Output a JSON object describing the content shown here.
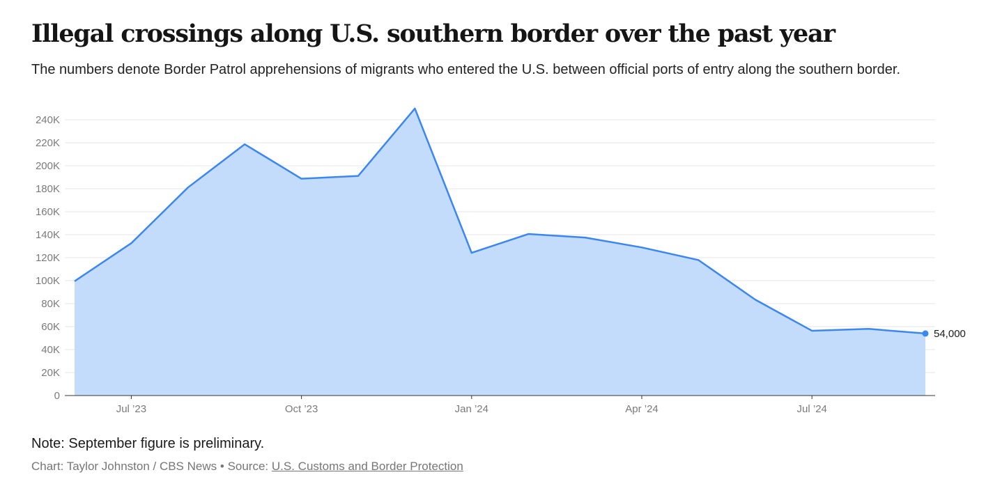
{
  "header": {
    "title": "Illegal crossings along U.S. southern border over the past year",
    "subtitle": "The numbers denote Border Patrol apprehensions of migrants who entered the U.S. between official ports of entry along the southern border."
  },
  "footer": {
    "note": "Note: September figure is preliminary.",
    "credit": "Chart: Taylor Johnston / CBS News",
    "separator": "•",
    "source_label": "Source:",
    "source_link": "U.S. Customs and Border Protection"
  },
  "colors": {
    "line": "#3b86f0",
    "area": "#c3dcfb",
    "grid": "#e4e4e4",
    "axis": "#333333"
  },
  "chart_data": {
    "type": "area",
    "title": "Illegal crossings along U.S. southern border over the past year",
    "xlabel": "",
    "ylabel": "",
    "x": [
      "Jun '23",
      "Jul '23",
      "Aug '23",
      "Sep '23",
      "Oct '23",
      "Nov '23",
      "Dec '23",
      "Jan '24",
      "Feb '24",
      "Mar '24",
      "Apr '24",
      "May '24",
      "Jun '24",
      "Jul '24",
      "Aug '24",
      "Sep '24"
    ],
    "series": [
      {
        "name": "Border Patrol apprehensions",
        "values": [
          99500,
          132600,
          181100,
          218700,
          188700,
          191100,
          249800,
          124200,
          140600,
          137500,
          128900,
          117900,
          83500,
          56400,
          58000,
          54000
        ]
      }
    ],
    "ylim": [
      0,
      250000
    ],
    "yticks": [
      0,
      20000,
      40000,
      60000,
      80000,
      100000,
      120000,
      140000,
      160000,
      180000,
      200000,
      220000,
      240000
    ],
    "ytick_labels": [
      "0",
      "20K",
      "40K",
      "60K",
      "80K",
      "100K",
      "120K",
      "140K",
      "160K",
      "180K",
      "200K",
      "220K",
      "240K"
    ],
    "xticks": [
      1,
      4,
      7,
      10,
      13
    ],
    "xtick_labels": [
      "Jul ’23",
      "Oct ’23",
      "Jan ’24",
      "Apr ’24",
      "Jul ’24"
    ],
    "end_label": "54,000",
    "grid": true,
    "legend": "none"
  }
}
